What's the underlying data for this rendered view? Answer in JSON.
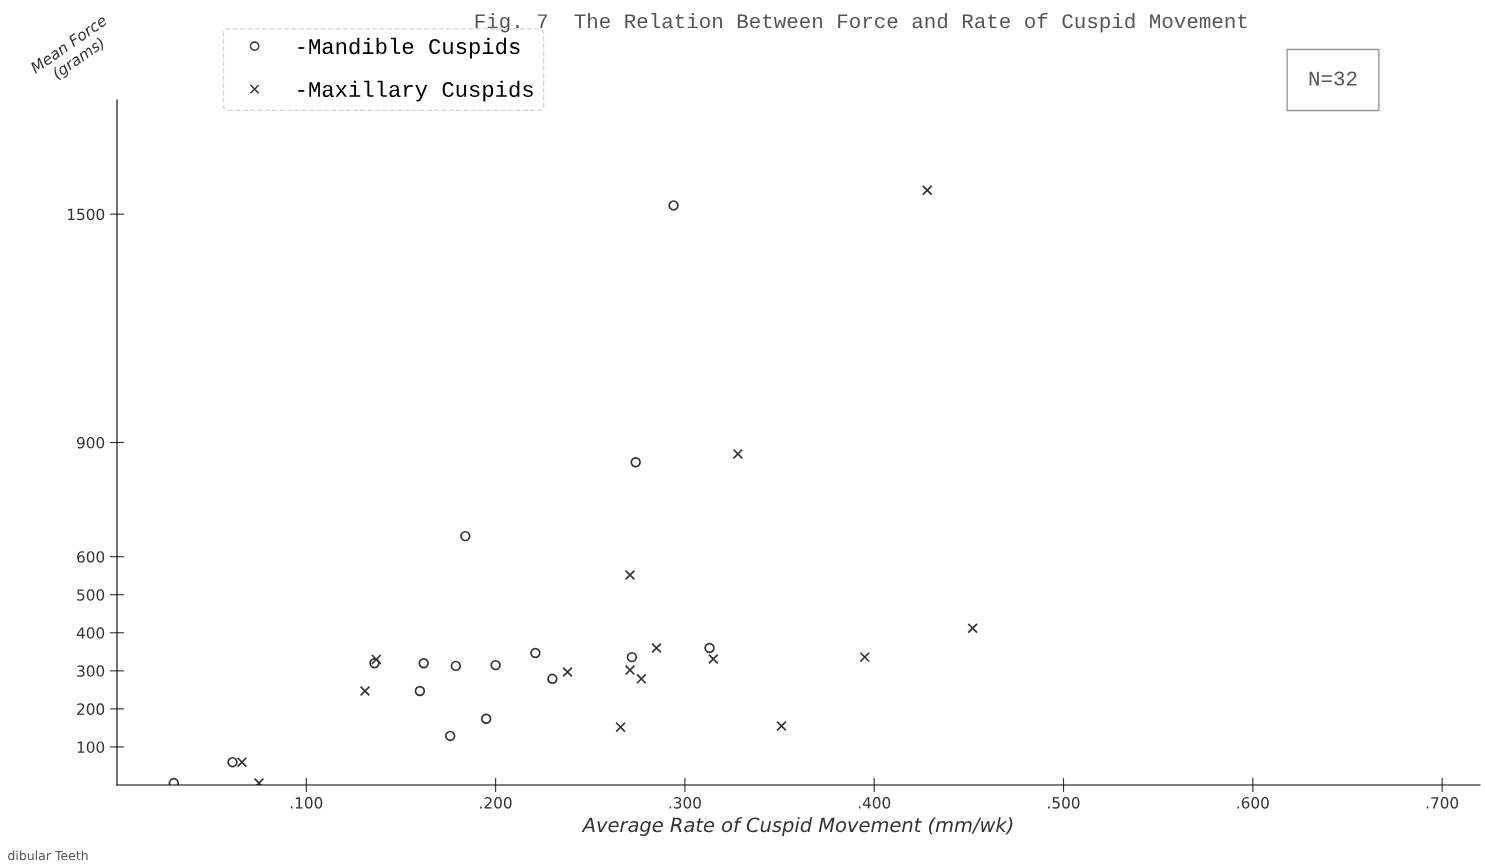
{
  "chart_data": {
    "type": "scatter",
    "title": "Fig. 7  The Relation Between Force and Rate of Cuspid Movement",
    "xlabel": "Average Rate of Cuspid Movement (mm/wk)",
    "ylabel": "Mean Force\n(grams)",
    "annotations": [
      "N=32",
      "dibular Teeth"
    ],
    "series": [
      {
        "name": "-Mandible Cuspids",
        "color": "#333333",
        "marker": "circle",
        "x": [
          0.03,
          0.061,
          0.162,
          0.179,
          0.2,
          0.221,
          0.23,
          0.16,
          0.195,
          0.176,
          0.184,
          0.272,
          0.274,
          0.294,
          0.313,
          0.136
        ],
        "values": [
          5,
          60,
          320,
          313,
          315,
          347,
          279,
          247,
          174,
          129,
          654,
          336,
          848,
          1523,
          360,
          320
        ]
      },
      {
        "name": "-Maxillary Cuspids",
        "color": "#333333",
        "marker": "cross",
        "x": [
          0.075,
          0.066,
          0.131,
          0.238,
          0.285,
          0.271,
          0.277,
          0.266,
          0.271,
          0.328,
          0.428,
          0.452,
          0.395,
          0.351,
          0.315,
          0.137
        ],
        "values": [
          5,
          60,
          247,
          297,
          360,
          302,
          279,
          152,
          552,
          870,
          1563,
          412,
          336,
          155,
          331,
          330
        ]
      }
    ],
    "xlim": [
      0,
      0.72
    ],
    "ylim": [
      0,
      1800
    ],
    "xticks": [
      {
        "value": 0.1,
        "label": ".100"
      },
      {
        "value": 0.2,
        "label": ".200"
      },
      {
        "value": 0.3,
        "label": ".300"
      },
      {
        "value": 0.4,
        "label": ".400"
      },
      {
        "value": 0.5,
        "label": ".500"
      },
      {
        "value": 0.6,
        "label": ".600"
      },
      {
        "value": 0.7,
        "label": ".700"
      }
    ],
    "yticks": [
      100,
      200,
      300,
      400,
      500,
      600,
      900,
      1500
    ],
    "legend": "top left",
    "grid": false
  }
}
